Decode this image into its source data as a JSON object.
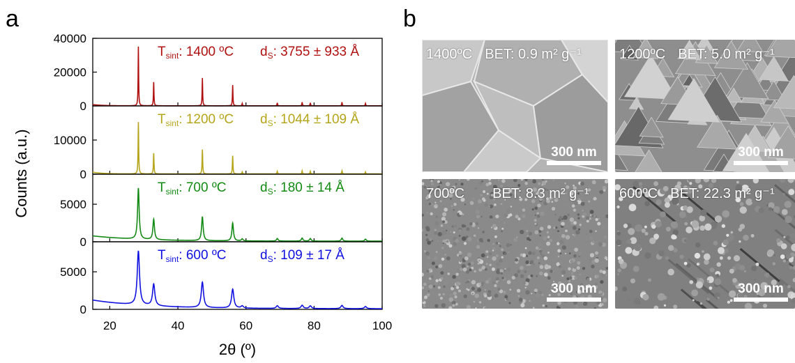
{
  "panel_labels": {
    "a": "a",
    "b": "b"
  },
  "chart_data": {
    "type": "line",
    "xlabel": "2θ (º)",
    "ylabel": "Counts (a.u.)",
    "xlim": [
      15,
      100
    ],
    "xticks": [
      20,
      40,
      60,
      80,
      100
    ],
    "grid": false,
    "peaks": [
      28.4,
      32.9,
      47.2,
      56.1,
      58.9,
      69.2,
      76.5,
      78.9,
      88.2,
      95.1
    ],
    "rel_intensity": [
      1.0,
      0.4,
      0.47,
      0.35,
      0.04,
      0.05,
      0.06,
      0.05,
      0.06,
      0.04
    ],
    "series": [
      {
        "T_label": "1400 ºC",
        "d_label": "3755 ± 933 Å",
        "color": "#b01010",
        "ylim": [
          0,
          40000
        ],
        "yticks": [
          0,
          20000,
          40000
        ],
        "peak_height": 35000,
        "fwhm": 0.18,
        "bg_start": 700,
        "bg_decay": 3
      },
      {
        "T_label": "1200 ºC",
        "d_label": "1044 ± 109 Å",
        "color": "#b5a51a",
        "ylim": [
          0,
          20000
        ],
        "yticks": [
          0,
          10000
        ],
        "peak_height": 15200,
        "fwhm": 0.2,
        "bg_start": 500,
        "bg_decay": 3
      },
      {
        "T_label": "700 ºC",
        "d_label": "180 ± 14 Å",
        "color": "#138a13",
        "ylim": [
          0,
          9000
        ],
        "yticks": [
          0,
          5000
        ],
        "peak_height": 6800,
        "fwhm": 0.55,
        "bg_start": 700,
        "bg_decay": 14
      },
      {
        "T_label": "600 ºC",
        "d_label": "109 ± 17 Å",
        "color": "#1010e0",
        "ylim": [
          0,
          9000
        ],
        "yticks": [
          0,
          5000
        ],
        "peak_height": 7200,
        "fwhm": 0.8,
        "bg_start": 1150,
        "bg_decay": 16
      }
    ],
    "t_prefix": "T",
    "t_sub": "sint",
    "d_prefix": "d",
    "d_sub": "S"
  },
  "sem_images": [
    {
      "temp": "1400ºC",
      "bet": "BET: 0.9 m² g⁻¹",
      "scale": "300 nm",
      "texture": "large-grains"
    },
    {
      "temp": "1200ºC",
      "bet": "BET: 5.0 m² g⁻¹",
      "scale": "300 nm",
      "texture": "faceted-crystals"
    },
    {
      "temp": "700ºC",
      "bet": "BET: 8.3 m² g⁻¹",
      "scale": "300 nm",
      "texture": "fine-particles"
    },
    {
      "temp": "600ºC",
      "bet": "BET: 22.3 m² g⁻¹",
      "scale": "300 nm",
      "texture": "agglomerates"
    }
  ]
}
